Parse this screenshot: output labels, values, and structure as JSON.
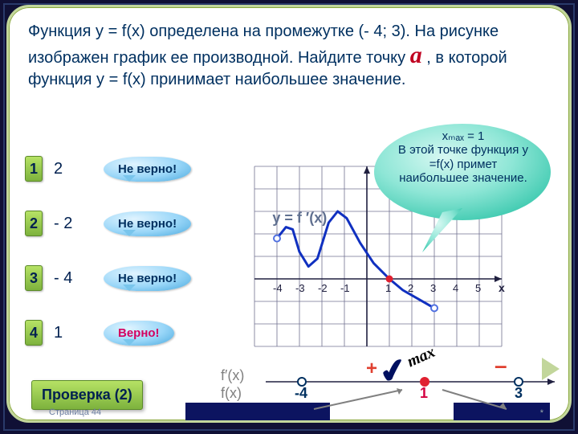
{
  "question": {
    "line1": "Функция  y = f(x)  определена  на промежутке (- 4; 3). На рисунке изображен график ее производной. Найдите точку ",
    "a_symbol": "a",
    "line2": " , в которой функция y = f(x) принимает наибольшее значение."
  },
  "answers": [
    {
      "n": "1",
      "val": "2",
      "fb": "Не верно!",
      "correct": false
    },
    {
      "n": "2",
      "val": "- 2",
      "fb": "Не верно!",
      "correct": false
    },
    {
      "n": "3",
      "val": "- 4",
      "fb": "Не верно!",
      "correct": false
    },
    {
      "n": "4",
      "val": "1",
      "fb": "Верно!",
      "correct": true
    }
  ],
  "check_label": "Проверка (2)",
  "footer": "Страница 44",
  "callout": {
    "xmax": "xₘₐₓ = 1",
    "text": "В этой точке функция\ny =f(x) примет наибольшее значение."
  },
  "graph": {
    "label": "y = f ′(x)",
    "x_axis": "x",
    "xticks": [
      "-4",
      "-3",
      "-2",
      "-1",
      "1",
      "2",
      "3",
      "4",
      "5"
    ],
    "curve_color": "#1030c0",
    "grid_color": "#707090",
    "axis_color": "#202040",
    "open_pt_color": "#5070e0",
    "crit_dot_color": "#e02030",
    "x_range": [
      -5,
      6
    ],
    "cell": 28,
    "curve_pts": [
      [
        -4,
        1.8
      ],
      [
        -3.6,
        2.3
      ],
      [
        -3.3,
        2.2
      ],
      [
        -3,
        1.2
      ],
      [
        -2.6,
        0.55
      ],
      [
        -2.2,
        0.9
      ],
      [
        -1.7,
        2.5
      ],
      [
        -1.3,
        3
      ],
      [
        -0.9,
        2.7
      ],
      [
        -0.3,
        1.6
      ],
      [
        0.3,
        0.7
      ],
      [
        1,
        0
      ],
      [
        1.6,
        -0.5
      ],
      [
        2.3,
        -0.9
      ],
      [
        3,
        -1.3
      ]
    ],
    "open_points": [
      [
        -4,
        1.8
      ],
      [
        3,
        -1.3
      ]
    ],
    "crit_point": [
      1,
      0
    ]
  },
  "numberline": {
    "f_deriv": "f′(x)",
    "f": "f(x)",
    "ticks": [
      {
        "x": -4,
        "lbl": "-4",
        "open": true,
        "cls": "b"
      },
      {
        "x": 1,
        "lbl": "1",
        "open": false,
        "cls": ""
      },
      {
        "x": 3,
        "lbl": "3",
        "open": true,
        "cls": "b"
      }
    ],
    "plus": "+",
    "minus": "–",
    "max": "max"
  },
  "colors": {
    "slide_border": "#c2d69b",
    "text": "#003060",
    "accent_red": "#d40040",
    "btn_grad_top": "#b6e265",
    "btn_grad_bot": "#7db23d"
  }
}
